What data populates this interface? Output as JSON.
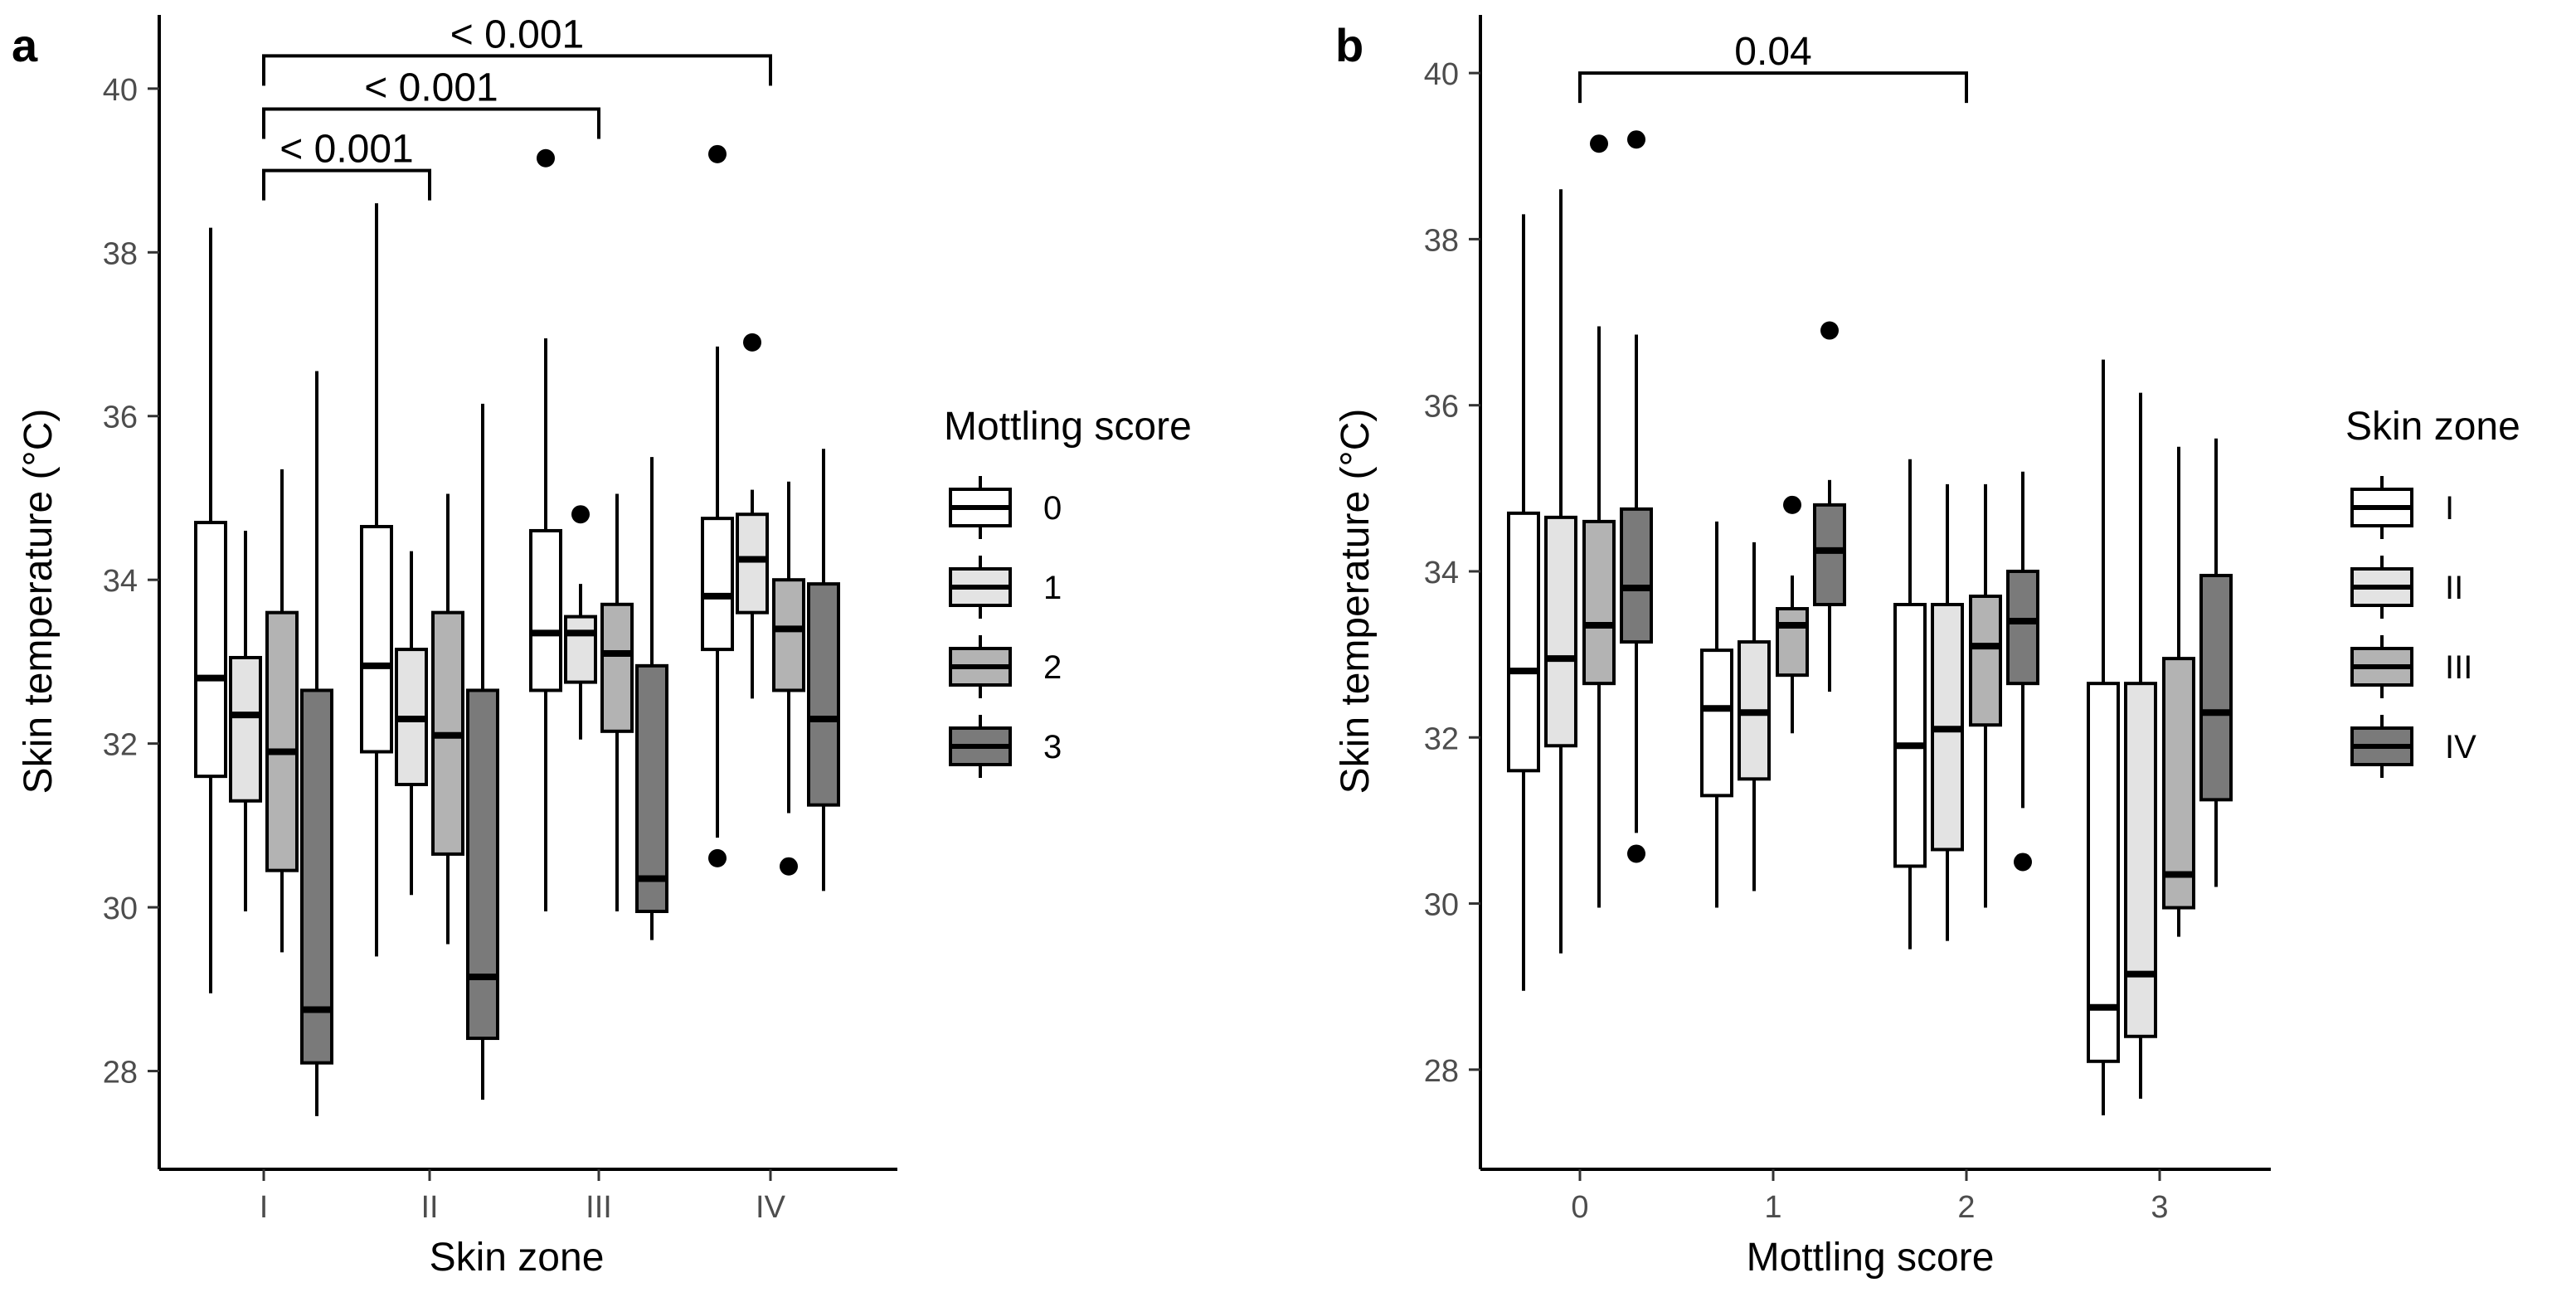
{
  "chart_data": [
    {
      "panel_label": "a",
      "type": "boxplot",
      "title": "",
      "xlabel": "Skin zone",
      "ylabel": "Skin temperature (°C)",
      "ylim": [
        26.8,
        40.9
      ],
      "yticks": [
        28,
        30,
        32,
        34,
        36,
        38,
        40
      ],
      "categories": [
        "I",
        "II",
        "III",
        "IV"
      ],
      "legend": {
        "title": "Mottling score",
        "entries": [
          "0",
          "1",
          "2",
          "3"
        ],
        "colors": [
          "#ffffff",
          "#e3e3e3",
          "#b3b3b3",
          "#7a7a7a"
        ]
      },
      "series": [
        {
          "name": "0",
          "boxes": [
            {
              "low": 28.95,
              "q1": 31.6,
              "median": 32.8,
              "q3": 34.7,
              "high": 38.3,
              "outliers": []
            },
            {
              "low": 29.4,
              "q1": 31.9,
              "median": 32.95,
              "q3": 34.65,
              "high": 38.6,
              "outliers": []
            },
            {
              "low": 29.95,
              "q1": 32.65,
              "median": 33.35,
              "q3": 34.6,
              "high": 36.95,
              "outliers": [
                39.15
              ]
            },
            {
              "low": 30.85,
              "q1": 33.15,
              "median": 33.8,
              "q3": 34.75,
              "high": 36.85,
              "outliers": [
                39.2,
                30.6
              ]
            }
          ]
        },
        {
          "name": "1",
          "boxes": [
            {
              "low": 29.95,
              "q1": 31.3,
              "median": 32.35,
              "q3": 33.05,
              "high": 34.6,
              "outliers": []
            },
            {
              "low": 30.15,
              "q1": 31.5,
              "median": 32.3,
              "q3": 33.15,
              "high": 34.35,
              "outliers": []
            },
            {
              "low": 32.05,
              "q1": 32.75,
              "median": 33.35,
              "q3": 33.55,
              "high": 33.95,
              "outliers": [
                34.8
              ]
            },
            {
              "low": 32.55,
              "q1": 33.6,
              "median": 34.25,
              "q3": 34.8,
              "high": 35.1,
              "outliers": [
                36.9
              ]
            }
          ]
        },
        {
          "name": "2",
          "boxes": [
            {
              "low": 29.45,
              "q1": 30.45,
              "median": 31.9,
              "q3": 33.6,
              "high": 35.35,
              "outliers": []
            },
            {
              "low": 29.55,
              "q1": 30.65,
              "median": 32.1,
              "q3": 33.6,
              "high": 35.05,
              "outliers": []
            },
            {
              "low": 29.95,
              "q1": 32.15,
              "median": 33.1,
              "q3": 33.7,
              "high": 35.05,
              "outliers": []
            },
            {
              "low": 31.15,
              "q1": 32.65,
              "median": 33.4,
              "q3": 34.0,
              "high": 35.2,
              "outliers": [
                30.5
              ]
            }
          ]
        },
        {
          "name": "3",
          "boxes": [
            {
              "low": 27.45,
              "q1": 28.1,
              "median": 28.75,
              "q3": 32.65,
              "high": 36.55,
              "outliers": []
            },
            {
              "low": 27.65,
              "q1": 28.4,
              "median": 29.15,
              "q3": 32.65,
              "high": 36.15,
              "outliers": []
            },
            {
              "low": 29.6,
              "q1": 29.95,
              "median": 30.35,
              "q3": 32.95,
              "high": 35.5,
              "outliers": []
            },
            {
              "low": 30.2,
              "q1": 31.25,
              "median": 32.3,
              "q3": 33.95,
              "high": 35.6,
              "outliers": []
            }
          ]
        }
      ],
      "annotations": [
        {
          "from": "I",
          "to": "II",
          "y": 39.0,
          "label": "< 0.001"
        },
        {
          "from": "I",
          "to": "III",
          "y": 39.75,
          "label": "< 0.001"
        },
        {
          "from": "I",
          "to": "IV",
          "y": 40.4,
          "label": "< 0.001"
        }
      ]
    },
    {
      "panel_label": "b",
      "type": "boxplot",
      "title": "",
      "xlabel": "Mottling score",
      "ylabel": "Skin temperature (°C)",
      "ylim": [
        26.8,
        40.7
      ],
      "yticks": [
        28,
        30,
        32,
        34,
        36,
        38,
        40
      ],
      "categories": [
        "0",
        "1",
        "2",
        "3"
      ],
      "legend": {
        "title": "Skin zone",
        "entries": [
          "I",
          "II",
          "III",
          "IV"
        ],
        "colors": [
          "#ffffff",
          "#e3e3e3",
          "#b3b3b3",
          "#7a7a7a"
        ]
      },
      "series": [
        {
          "name": "I",
          "boxes": [
            {
              "low": 28.95,
              "q1": 31.6,
              "median": 32.8,
              "q3": 34.7,
              "high": 38.3,
              "outliers": []
            },
            {
              "low": 29.95,
              "q1": 31.3,
              "median": 32.35,
              "q3": 33.05,
              "high": 34.6,
              "outliers": []
            },
            {
              "low": 29.45,
              "q1": 30.45,
              "median": 31.9,
              "q3": 33.6,
              "high": 35.35,
              "outliers": []
            },
            {
              "low": 27.45,
              "q1": 28.1,
              "median": 28.75,
              "q3": 32.65,
              "high": 36.55,
              "outliers": []
            }
          ]
        },
        {
          "name": "II",
          "boxes": [
            {
              "low": 29.4,
              "q1": 31.9,
              "median": 32.95,
              "q3": 34.65,
              "high": 38.6,
              "outliers": []
            },
            {
              "low": 30.15,
              "q1": 31.5,
              "median": 32.3,
              "q3": 33.15,
              "high": 34.35,
              "outliers": []
            },
            {
              "low": 29.55,
              "q1": 30.65,
              "median": 32.1,
              "q3": 33.6,
              "high": 35.05,
              "outliers": []
            },
            {
              "low": 27.65,
              "q1": 28.4,
              "median": 29.15,
              "q3": 32.65,
              "high": 36.15,
              "outliers": []
            }
          ]
        },
        {
          "name": "III",
          "boxes": [
            {
              "low": 29.95,
              "q1": 32.65,
              "median": 33.35,
              "q3": 34.6,
              "high": 36.95,
              "outliers": [
                39.15
              ]
            },
            {
              "low": 32.05,
              "q1": 32.75,
              "median": 33.35,
              "q3": 33.55,
              "high": 33.95,
              "outliers": [
                34.8
              ]
            },
            {
              "low": 29.95,
              "q1": 32.15,
              "median": 33.1,
              "q3": 33.7,
              "high": 35.05,
              "outliers": []
            },
            {
              "low": 29.6,
              "q1": 29.95,
              "median": 30.35,
              "q3": 32.95,
              "high": 35.5,
              "outliers": []
            }
          ]
        },
        {
          "name": "IV",
          "boxes": [
            {
              "low": 30.85,
              "q1": 33.15,
              "median": 33.8,
              "q3": 34.75,
              "high": 36.85,
              "outliers": [
                39.2,
                30.6
              ]
            },
            {
              "low": 32.55,
              "q1": 33.6,
              "median": 34.25,
              "q3": 34.8,
              "high": 35.1,
              "outliers": [
                36.9
              ]
            },
            {
              "low": 31.15,
              "q1": 32.65,
              "median": 33.4,
              "q3": 34.0,
              "high": 35.2,
              "outliers": [
                30.5
              ]
            },
            {
              "low": 30.2,
              "q1": 31.25,
              "median": 32.3,
              "q3": 33.95,
              "high": 35.6,
              "outliers": []
            }
          ]
        }
      ],
      "annotations": [
        {
          "from": "0",
          "to": "2",
          "y": 40.0,
          "label": "0.04"
        }
      ]
    }
  ]
}
